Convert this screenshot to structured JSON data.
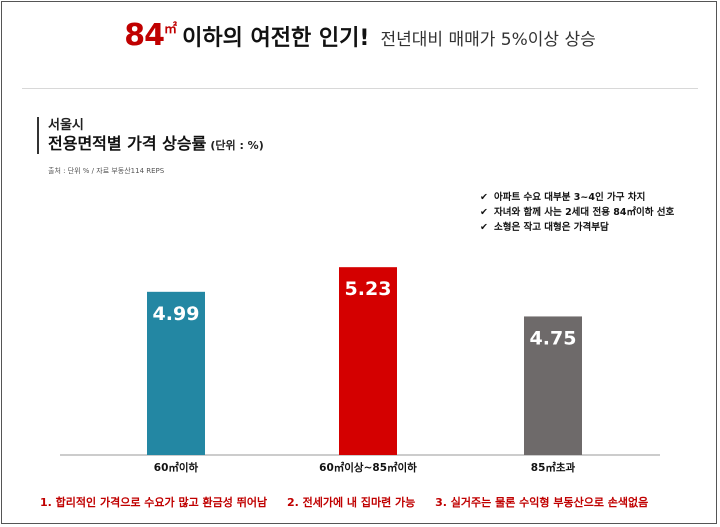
{
  "headline": {
    "number": "84",
    "unit": "㎡",
    "bold_text": "이하의 여전한 인기!",
    "light_text": "전년대비 매매가 5%이상 상승"
  },
  "title": {
    "region": "서울시",
    "main": "전용면적별 가격 상승률",
    "unit": "(단위 : %)"
  },
  "source": "출처 : 단위 % / 자료 부동산114 REPS",
  "notes": [
    "아파트 수요 대부분 3~4인 가구 차지",
    "자녀와 함께 사는 2세대 전용 84㎡이하 선호",
    "소형은 작고 대형은 가격부담"
  ],
  "footer": [
    "1. 합리적인 가격으로 수요가 많고 환금성 뛰어남",
    "2. 전세가에 내 집마련 가능",
    "3. 실거주는 물론 수익형 부동산으로 손색없음"
  ],
  "chart_data": {
    "type": "bar",
    "title": "전용면적별 가격 상승률",
    "categories": [
      "60㎡이하",
      "60㎡이상~85㎡이하",
      "85㎡초과"
    ],
    "values": [
      4.99,
      5.23,
      4.75
    ],
    "value_labels": [
      "4.99",
      "5.23",
      "4.75"
    ],
    "colors": [
      "#2387a3",
      "#d40000",
      "#6e6a6a"
    ],
    "ylim": [
      3.4,
      5.3
    ],
    "xlabel": "",
    "ylabel": "",
    "grid": false,
    "legend": "none"
  }
}
